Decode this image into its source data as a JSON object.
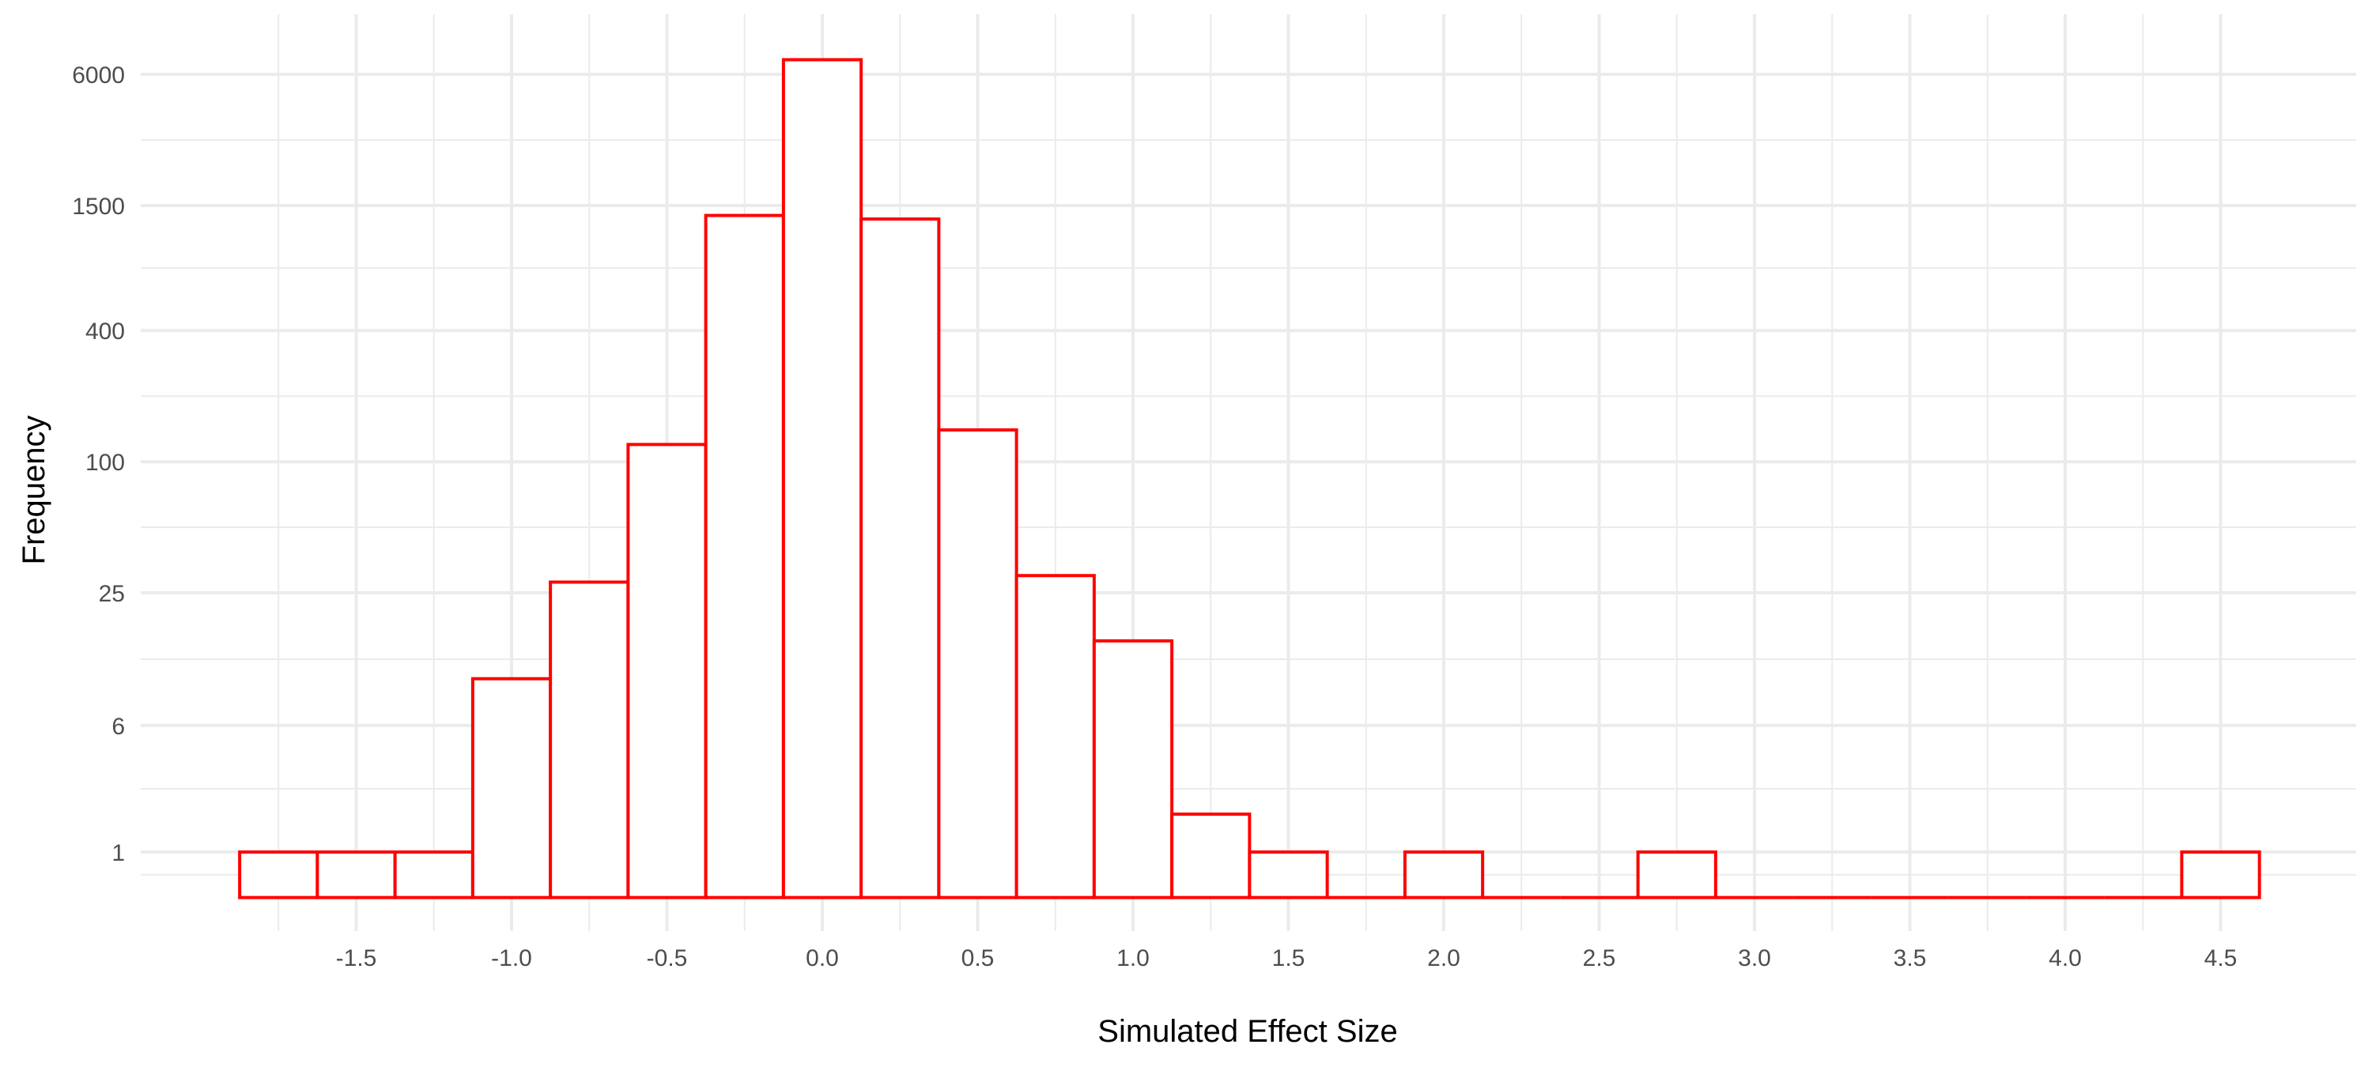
{
  "chart_data": {
    "type": "bar",
    "subtype": "histogram",
    "title": "",
    "xlabel": "Simulated Effect Size",
    "ylabel": "Frequency",
    "y_scale": "pseudo-log",
    "bin_width": 0.25,
    "xlim": [
      -1.875,
      4.625
    ],
    "ylim": [
      0,
      8000
    ],
    "x_ticks": [
      -1.5,
      -1.0,
      -0.5,
      0.0,
      0.5,
      1.0,
      1.5,
      2.0,
      2.5,
      3.0,
      3.5,
      4.0,
      4.5
    ],
    "x_tick_labels": [
      "-1.5",
      "-1.0",
      "-0.5",
      "0.0",
      "0.5",
      "1.0",
      "1.5",
      "2.0",
      "2.5",
      "3.0",
      "3.5",
      "4.0",
      "4.5"
    ],
    "y_ticks": [
      1,
      6,
      25,
      100,
      400,
      1500,
      6000
    ],
    "y_tick_labels": [
      "1",
      "6",
      "25",
      "100",
      "400",
      "1500",
      "6000"
    ],
    "bins": [
      {
        "center": -1.75,
        "count": 1
      },
      {
        "center": -1.5,
        "count": 1
      },
      {
        "center": -1.25,
        "count": 1
      },
      {
        "center": -1.0,
        "count": 10
      },
      {
        "center": -0.75,
        "count": 28
      },
      {
        "center": -0.5,
        "count": 120
      },
      {
        "center": -0.25,
        "count": 1350
      },
      {
        "center": 0.0,
        "count": 7000
      },
      {
        "center": 0.25,
        "count": 1300
      },
      {
        "center": 0.5,
        "count": 140
      },
      {
        "center": 0.75,
        "count": 30
      },
      {
        "center": 1.0,
        "count": 15
      },
      {
        "center": 1.25,
        "count": 2
      },
      {
        "center": 1.5,
        "count": 1
      },
      {
        "center": 1.75,
        "count": 0
      },
      {
        "center": 2.0,
        "count": 1
      },
      {
        "center": 2.25,
        "count": 0
      },
      {
        "center": 2.5,
        "count": 0
      },
      {
        "center": 2.75,
        "count": 1
      },
      {
        "center": 3.0,
        "count": 0
      },
      {
        "center": 3.25,
        "count": 0
      },
      {
        "center": 3.5,
        "count": 0
      },
      {
        "center": 3.75,
        "count": 0
      },
      {
        "center": 4.0,
        "count": 0
      },
      {
        "center": 4.25,
        "count": 0
      },
      {
        "center": 4.5,
        "count": 1
      }
    ],
    "bar_fill": "#ffffff",
    "bar_outline": "#ff0000",
    "grid": true,
    "gridline_color": "#ebebeb",
    "background": "#ffffff"
  }
}
